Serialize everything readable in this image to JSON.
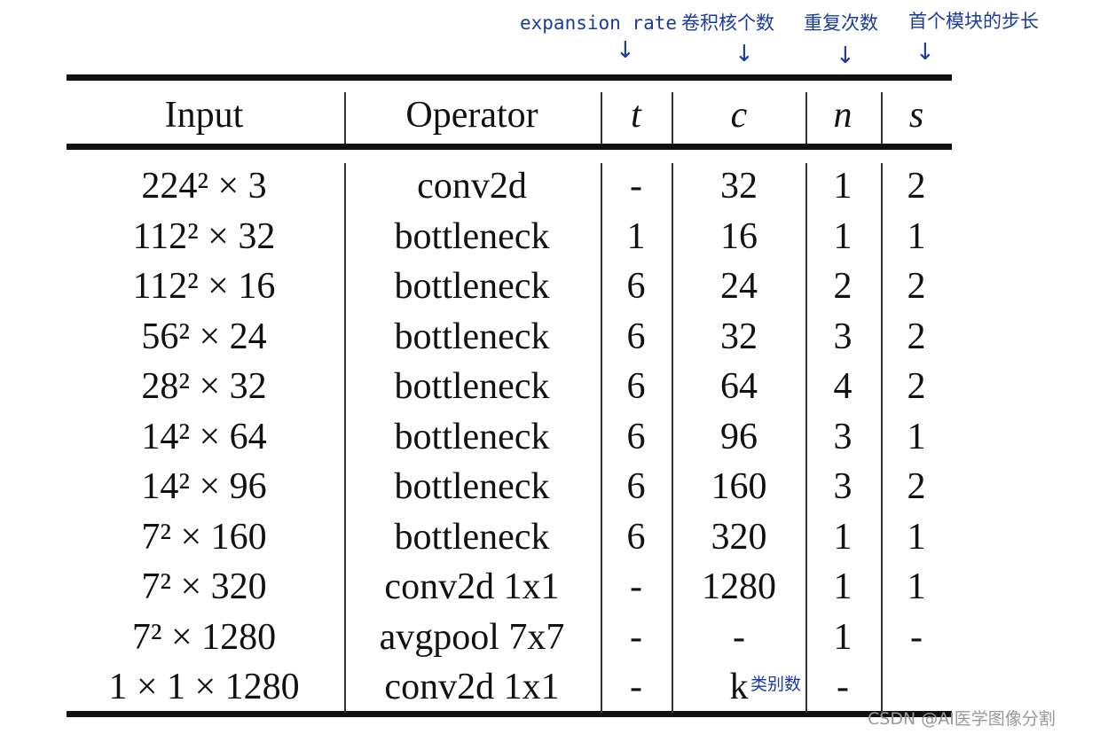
{
  "annotations": [
    "expansion rate",
    "卷积核个数",
    "重复次数",
    "首个模块的步长"
  ],
  "table": {
    "header": [
      "Input",
      "Operator",
      "t",
      "c",
      "n",
      "s"
    ],
    "rows": [
      [
        "224² × 3",
        "conv2d",
        "-",
        "32",
        "1",
        "2"
      ],
      [
        "112² × 32",
        "bottleneck",
        "1",
        "16",
        "1",
        "1"
      ],
      [
        "112² × 16",
        "bottleneck",
        "6",
        "24",
        "2",
        "2"
      ],
      [
        "56² × 24",
        "bottleneck",
        "6",
        "32",
        "3",
        "2"
      ],
      [
        "28² × 32",
        "bottleneck",
        "6",
        "64",
        "4",
        "2"
      ],
      [
        "14² × 64",
        "bottleneck",
        "6",
        "96",
        "3",
        "1"
      ],
      [
        "14² × 96",
        "bottleneck",
        "6",
        "160",
        "3",
        "2"
      ],
      [
        "7² × 160",
        "bottleneck",
        "6",
        "320",
        "1",
        "1"
      ],
      [
        "7² × 320",
        "conv2d 1x1",
        "-",
        "1280",
        "1",
        "1"
      ],
      [
        "7² × 1280",
        "avgpool 7x7",
        "-",
        "-",
        "1",
        "-"
      ],
      [
        "1 × 1 × 1280",
        "conv2d 1x1",
        "-",
        "k",
        "-"
      ]
    ]
  },
  "row_note": "类别数",
  "watermark": "CSDN @AI医学图像分割"
}
